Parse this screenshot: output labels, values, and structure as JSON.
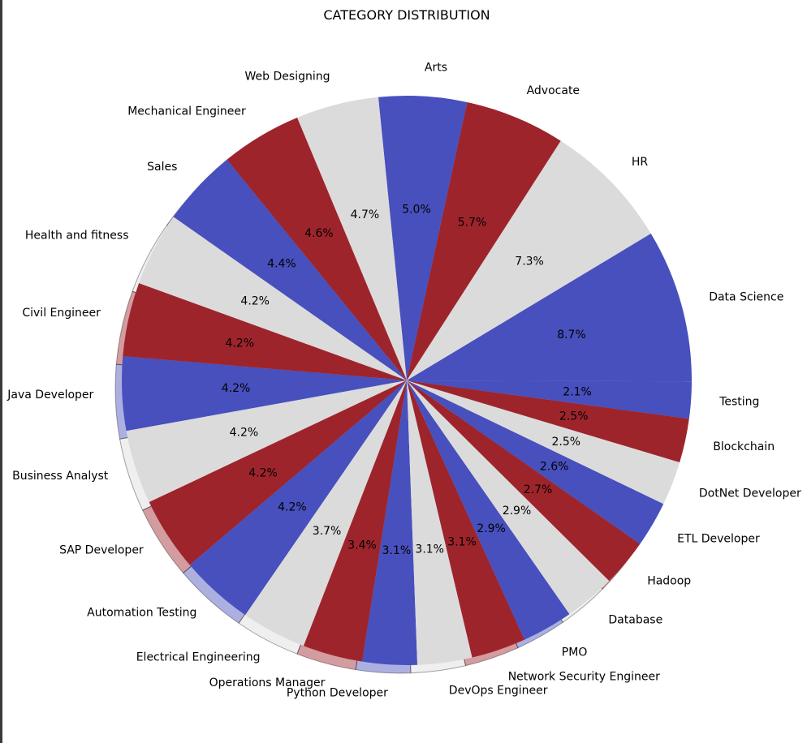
{
  "chart_data": {
    "type": "pie",
    "title": "CATEGORY DISTRIBUTION",
    "colors": [
      "#4750bd",
      "#dcdbdc",
      "#9e242c"
    ],
    "shadow": true,
    "slices": [
      {
        "label": "Data Science",
        "value": 8.7,
        "pct": "8.7%"
      },
      {
        "label": "HR",
        "value": 7.3,
        "pct": "7.3%"
      },
      {
        "label": "Advocate",
        "value": 5.7,
        "pct": "5.7%"
      },
      {
        "label": "Arts",
        "value": 5.0,
        "pct": "5.0%"
      },
      {
        "label": "Web Designing",
        "value": 4.7,
        "pct": "4.7%"
      },
      {
        "label": "Mechanical Engineer",
        "value": 4.6,
        "pct": "4.6%"
      },
      {
        "label": "Sales",
        "value": 4.4,
        "pct": "4.4%"
      },
      {
        "label": "Health and fitness",
        "value": 4.2,
        "pct": "4.2%"
      },
      {
        "label": "Civil Engineer",
        "value": 4.2,
        "pct": "4.2%"
      },
      {
        "label": "Java Developer",
        "value": 4.2,
        "pct": "4.2%"
      },
      {
        "label": "Business Analyst",
        "value": 4.2,
        "pct": "4.2%"
      },
      {
        "label": "SAP Developer",
        "value": 4.2,
        "pct": "4.2%"
      },
      {
        "label": "Automation Testing",
        "value": 4.2,
        "pct": "4.2%"
      },
      {
        "label": "Electrical Engineering",
        "value": 3.7,
        "pct": "3.7%"
      },
      {
        "label": "Operations Manager",
        "value": 3.4,
        "pct": "3.4%"
      },
      {
        "label": "Python Developer",
        "value": 3.1,
        "pct": "3.1%"
      },
      {
        "label": "DevOps Engineer",
        "value": 3.1,
        "pct": "3.1%"
      },
      {
        "label": "Network Security Engineer",
        "value": 3.1,
        "pct": "3.1%"
      },
      {
        "label": "PMO",
        "value": 2.9,
        "pct": "2.9%"
      },
      {
        "label": "Database",
        "value": 2.9,
        "pct": "2.9%"
      },
      {
        "label": "Hadoop",
        "value": 2.7,
        "pct": "2.7%"
      },
      {
        "label": "ETL Developer",
        "value": 2.6,
        "pct": "2.6%"
      },
      {
        "label": "DotNet Developer",
        "value": 2.5,
        "pct": "2.5%"
      },
      {
        "label": "Blockchain",
        "value": 2.5,
        "pct": "2.5%"
      },
      {
        "label": "Testing",
        "value": 2.1,
        "pct": "2.1%"
      }
    ]
  }
}
